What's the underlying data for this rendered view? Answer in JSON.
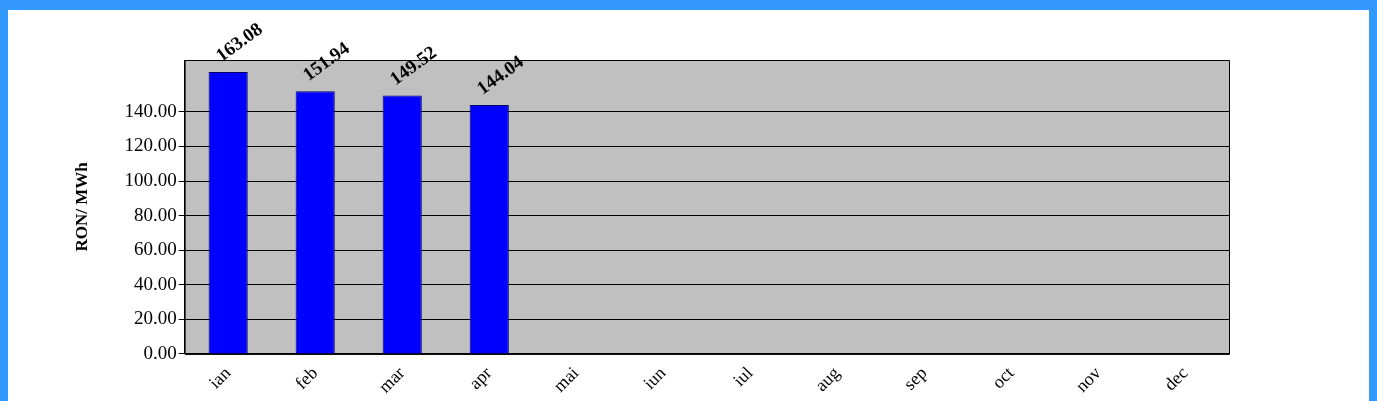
{
  "chart_data": {
    "type": "bar",
    "ylabel": "RON/ MWh",
    "categories": [
      "ian",
      "feb",
      "mar",
      "apr",
      "mai",
      "iun",
      "iul",
      "aug",
      "sep",
      "oct",
      "nov",
      "dec"
    ],
    "values": [
      163.08,
      151.94,
      149.52,
      144.04,
      null,
      null,
      null,
      null,
      null,
      null,
      null,
      null
    ],
    "color": "#0000ff",
    "ylim": [
      0,
      170
    ],
    "yticks": [
      {
        "value": 0,
        "label": "0.00"
      },
      {
        "value": 20,
        "label": "20.00"
      },
      {
        "value": 40,
        "label": "40.00"
      },
      {
        "value": 60,
        "label": "60.00"
      },
      {
        "value": 80,
        "label": "80.00"
      },
      {
        "value": 100,
        "label": "100.00"
      },
      {
        "value": 120,
        "label": "120.00"
      },
      {
        "value": 140,
        "label": "140.00"
      }
    ],
    "grid": "y",
    "data_labels": true
  }
}
